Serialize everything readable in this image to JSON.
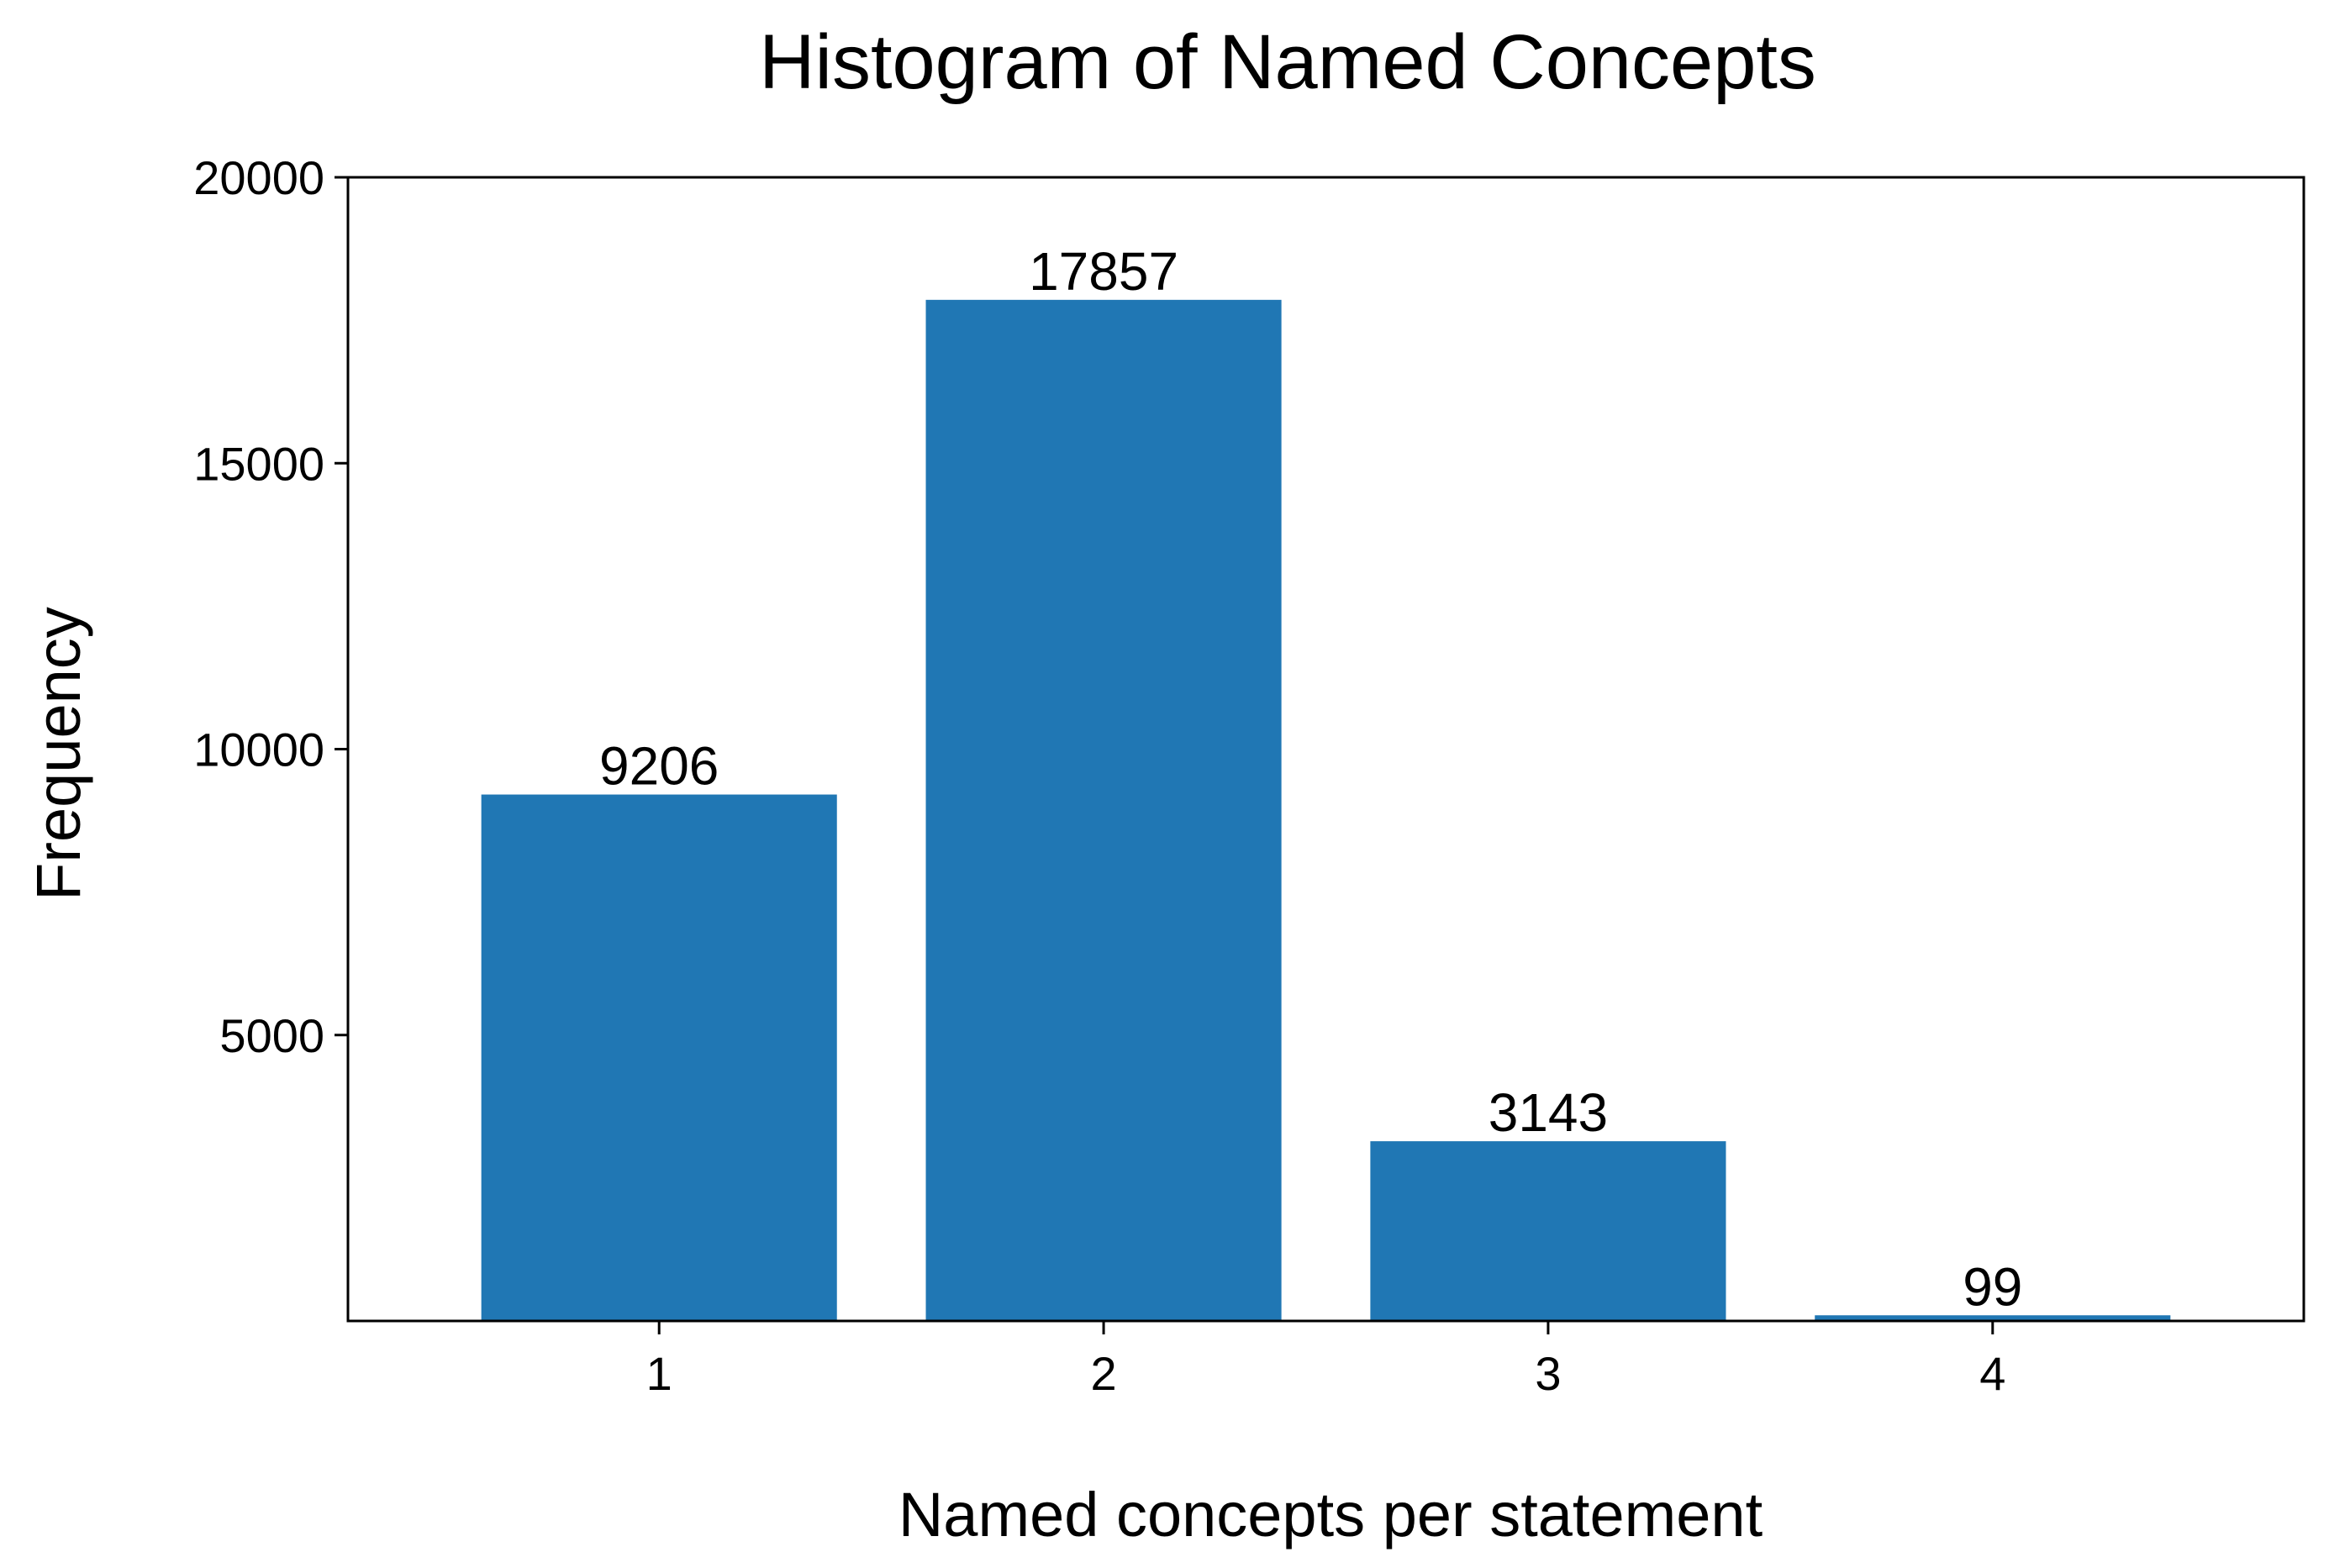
{
  "chart_data": {
    "type": "bar",
    "title": "Histogram of Named Concepts",
    "xlabel": "Named concepts per statement",
    "ylabel": "Frequency",
    "categories": [
      "1",
      "2",
      "3",
      "4"
    ],
    "values": [
      9206,
      17857,
      3143,
      99
    ],
    "data_labels": [
      "9206",
      "17857",
      "3143",
      "99"
    ],
    "ylim": [
      0,
      20000
    ],
    "yticks": [
      5000,
      10000,
      15000,
      20000
    ],
    "ytick_labels": [
      "5000",
      "10000",
      "15000",
      "20000"
    ],
    "bar_color": "#2077b4",
    "grid": false,
    "legend": "none"
  }
}
